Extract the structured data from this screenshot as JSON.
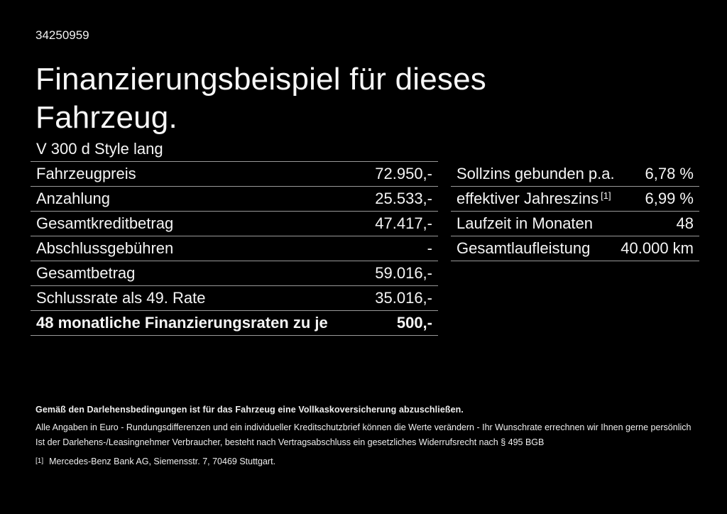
{
  "page": {
    "doc_id": "34250959",
    "title_line1": "Finanzierungsbeispiel für dieses",
    "title_line2": "Fahrzeug.",
    "model": "V 300 d Style lang"
  },
  "finance_table": {
    "rows": [
      {
        "label": "Fahrzeugpreis",
        "value": "72.950,-"
      },
      {
        "label": "Anzahlung",
        "value": "25.533,-"
      },
      {
        "label": "Gesamtkreditbetrag",
        "value": "47.417,-"
      },
      {
        "label": "Abschlussgebühren",
        "value": "-"
      },
      {
        "label": "Gesamtbetrag",
        "value": "59.016,-"
      },
      {
        "label": "Schlussrate als 49. Rate",
        "value": "35.016,-"
      },
      {
        "label": "48 monatliche Finanzierungsraten zu je",
        "value": "500,-"
      }
    ]
  },
  "conditions_table": {
    "rows": [
      {
        "label": "Sollzins gebunden p.a.",
        "value": "6,78 %"
      },
      {
        "label": "effektiver Jahreszins",
        "footnote_marker": "[1]",
        "value": "6,99 %"
      },
      {
        "label": "Laufzeit in Monaten",
        "value": "48"
      },
      {
        "label": "Gesamtlaufleistung",
        "value": "40.000 km"
      }
    ]
  },
  "fine_print": {
    "line1": "Gemäß den Darlehensbedingungen ist für das Fahrzeug eine Vollkaskoversicherung abzuschließen.",
    "line2": "Alle Angaben in Euro - Rundungsdifferenzen und ein individueller Kreditschutzbrief können die Werte verändern - Ihr Wunschrate errechnen wir Ihnen gerne persönlich",
    "line3": "Ist der Darlehens-/Leasingnehmer Verbraucher, besteht nach Vertragsabschluss ein gesetzliches Widerrufsrecht nach § 495 BGB",
    "footnote_marker": "[1]",
    "footnote": "Mercedes-Benz Bank AG, Siemensstr. 7, 70469 Stuttgart."
  },
  "colors": {
    "background": "#000000",
    "text": "#ffffff",
    "divider": "#999999"
  }
}
